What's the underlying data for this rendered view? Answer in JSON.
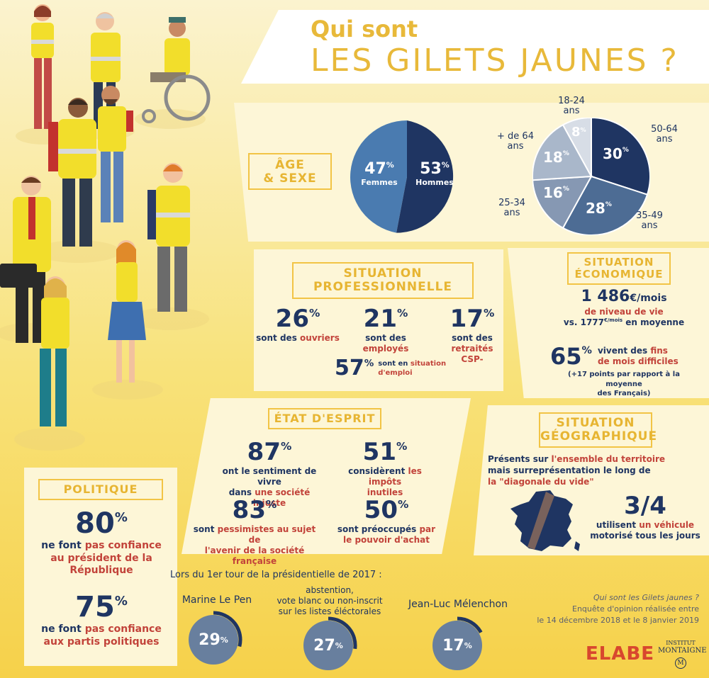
{
  "header": {
    "line1": "Qui sont",
    "line2": "LES GILETS JAUNES ?"
  },
  "age_sexe": {
    "label_line1": "ÂGE",
    "label_line2": "& SEXE",
    "sex": [
      {
        "value": "47",
        "name": "Femmes",
        "color": "#4a7bb0"
      },
      {
        "value": "53",
        "name": "Hommes",
        "color": "#1f3562"
      }
    ],
    "ages": [
      {
        "value": "30",
        "group": "50-64",
        "unit": "ans",
        "color": "#1f3562"
      },
      {
        "value": "28",
        "group": "35-49",
        "unit": "ans",
        "color": "#4d6c94"
      },
      {
        "value": "16",
        "group": "25-34",
        "unit": "ans",
        "color": "#8698b3"
      },
      {
        "value": "18",
        "group": "+ de 64",
        "unit": "ans",
        "color": "#a9b7ca"
      },
      {
        "value": "8",
        "group": "18-24",
        "unit": "ans",
        "color": "#d7dde6"
      }
    ]
  },
  "pro": {
    "label_line1": "SITUATION",
    "label_line2": "PROFESSIONNELLE",
    "stats": [
      {
        "value": "26",
        "pre": "sont des ",
        "hl": "ouvriers",
        "post": ""
      },
      {
        "value": "21",
        "pre": "sont des ",
        "hl": "employés",
        "post": ""
      },
      {
        "value": "17",
        "pre": "sont des ",
        "hl": "retraités",
        "post": "CSP-"
      }
    ],
    "emploi": {
      "value": "57",
      "pre": "sont en ",
      "hl1": "situation",
      "hl2": "d'emploi"
    }
  },
  "eco": {
    "label_line1": "SITUATION",
    "label_line2": "ÉCONOMIQUE",
    "income_value": "1 486",
    "income_unit": "€/mois",
    "income_hl": "de niveau de vie",
    "compare_pre": "vs. 1777",
    "compare_unit": "€/mois",
    "compare_post": " en moyenne",
    "fins_value": "65",
    "fins_pre": "vivent des ",
    "fins_hl1": "fins",
    "fins_hl2": "de mois difficiles",
    "fins_note1": "(+17 points par rapport à la moyenne",
    "fins_note2": "des Français)"
  },
  "esprit": {
    "label": "ÉTAT D'ESPRIT",
    "stats": [
      {
        "value": "87",
        "l1": "ont le sentiment de vivre",
        "l2pre": "dans ",
        "l2hl": "une société injuste"
      },
      {
        "value": "51",
        "l1pre": "considèrent ",
        "l1hl": "les impôts",
        "l2hl": "inutiles"
      },
      {
        "value": "83",
        "l1pre": "sont ",
        "l1hl": "pessimistes au sujet de",
        "l2hl": "l'avenir de la société française"
      },
      {
        "value": "50",
        "l1pre": "sont préoccupés ",
        "l1hl": "par",
        "l2hl": "le pouvoir d'achat"
      }
    ]
  },
  "geo": {
    "label_line1": "SITUATION",
    "label_line2": "GÉOGRAPHIQUE",
    "text_pre": "Présents sur ",
    "text_hl1": "l'ensemble du territoire",
    "text_l2": "mais surreprésentation le long de",
    "text_hl2": "la \"diagonale du vide\"",
    "ratio": "3/4",
    "ratio_pre": "utilisent ",
    "ratio_hl": "un véhicule",
    "ratio_l2": "motorisé tous les jours"
  },
  "politique": {
    "label": "POLITIQUE",
    "stat1": {
      "value": "80",
      "l1pre": "ne font ",
      "l1hl": "pas confiance",
      "l2hl": "au président de la",
      "l3hl": "République"
    },
    "stat2": {
      "value": "75",
      "l1pre": "ne font ",
      "l1hl": "pas confiance",
      "l2hl": "aux partis politiques"
    },
    "intro": "Lors du 1er tour de la présidentielle de 2017 :",
    "votes": [
      {
        "name": "Marine Le Pen",
        "value": "29"
      },
      {
        "name1": "abstention,",
        "name2": "vote blanc ou non-inscrit",
        "name3": "sur les listes éléctorales",
        "value": "27"
      },
      {
        "name": "Jean-Luc Mélenchon",
        "value": "17"
      }
    ]
  },
  "source": {
    "title": "Qui sont les Gilets jaunes ?",
    "line1": "Enquête d'opinion réalisée entre",
    "line2": "le 14 décembre 2018 et le 8 janvier 2019",
    "logo1": "ELABE",
    "logo2a": "INSTITUT",
    "logo2b": "MONTAIGNE",
    "logo2c": "M"
  },
  "pct": "%"
}
